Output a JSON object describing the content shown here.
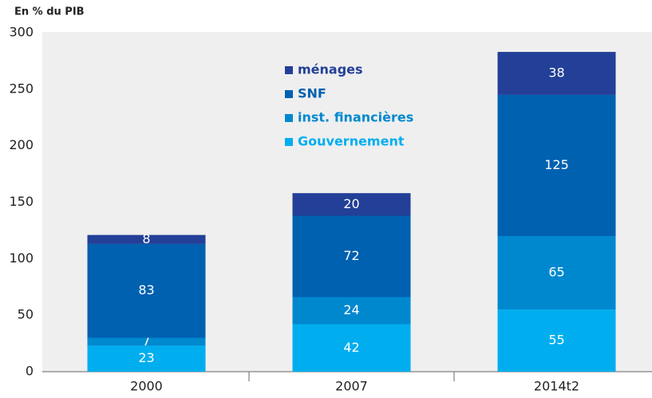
{
  "chart_data": {
    "type": "stacked-bar",
    "y_label": "En % du PIB",
    "categories": [
      "2000",
      "2007",
      "2014t2"
    ],
    "series": [
      {
        "name": "Gouvernement",
        "color": "#00aeef",
        "values": [
          23,
          42,
          55
        ]
      },
      {
        "name": "inst. financières",
        "color": "#0088cf",
        "values": [
          7,
          24,
          65
        ]
      },
      {
        "name": "SNF",
        "color": "#0061b0",
        "values": [
          83,
          72,
          125
        ]
      },
      {
        "name": "ménages",
        "color": "#233f97",
        "values": [
          8,
          20,
          38
        ]
      }
    ],
    "ylim": [
      0,
      300
    ],
    "yticks": [
      0,
      50,
      100,
      150,
      200,
      250,
      300
    ],
    "grid": false
  }
}
